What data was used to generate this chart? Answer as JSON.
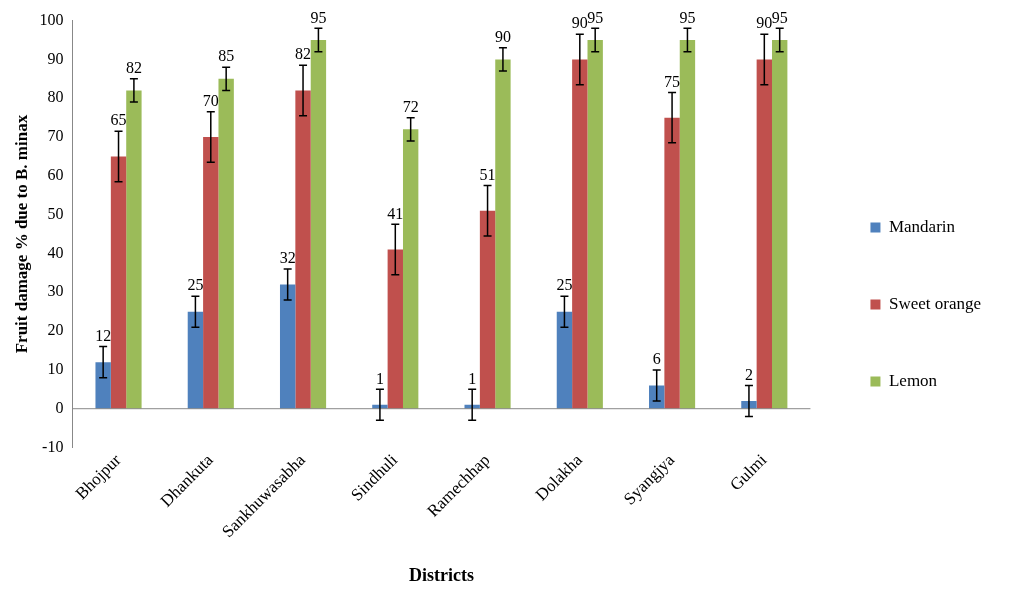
{
  "chart_data": {
    "type": "bar",
    "xlabel": "Districts",
    "ylabel": "Fruit damage % due to B. minax",
    "categories": [
      "Bhojpur",
      "Dhankuta",
      "Sankhuwasabha",
      "Sindhuli",
      "Ramechhap",
      "Dolakha",
      "Syangjya",
      "Gulmi"
    ],
    "series": [
      {
        "name": "Mandarin",
        "color": "#4f81bd",
        "values": [
          12,
          25,
          32,
          1,
          1,
          25,
          6,
          2
        ],
        "errors": [
          4,
          4,
          4,
          4,
          4,
          4,
          4,
          4
        ]
      },
      {
        "name": "Sweet orange",
        "color": "#c0504d",
        "values": [
          65,
          70,
          82,
          41,
          51,
          90,
          75,
          90
        ],
        "errors": [
          6.5,
          6.5,
          6.5,
          6.5,
          6.5,
          6.5,
          6.5,
          6.5
        ]
      },
      {
        "name": "Lemon",
        "color": "#9bbb59",
        "values": [
          82,
          85,
          95,
          72,
          90,
          95,
          95,
          95
        ],
        "errors": [
          3,
          3,
          3,
          3,
          3,
          3,
          3,
          3
        ]
      }
    ],
    "ylim": [
      -10,
      100
    ],
    "yticks": [
      -10,
      0,
      10,
      20,
      30,
      40,
      50,
      60,
      70,
      80,
      90,
      100
    ],
    "data_labels": true,
    "legend": "right"
  }
}
